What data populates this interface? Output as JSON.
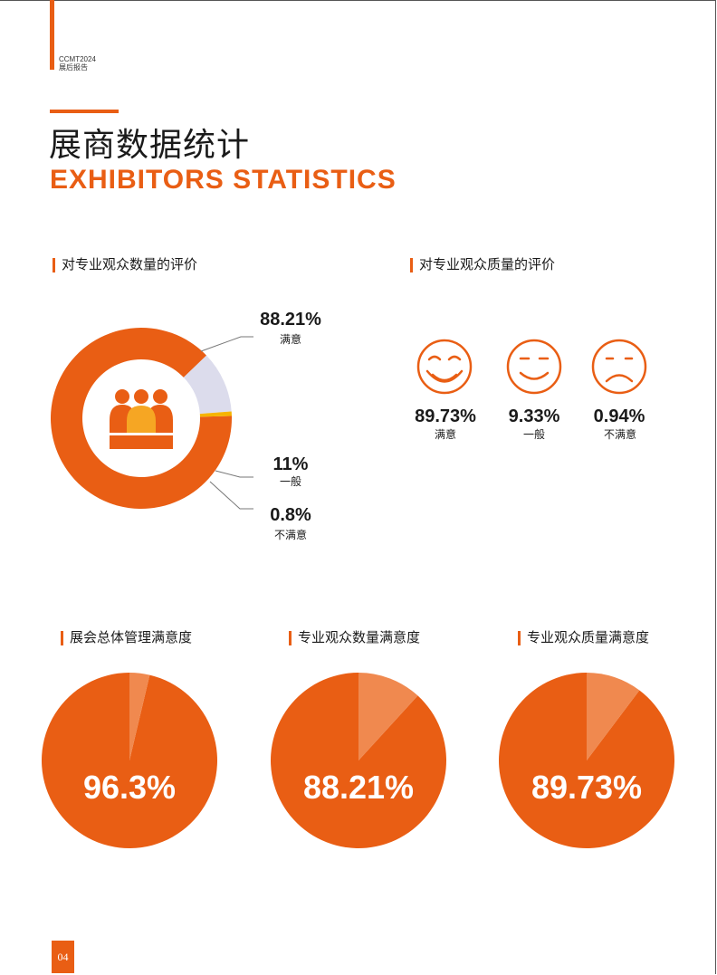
{
  "header": {
    "line1": "CCMT2024",
    "line2": "展后报告"
  },
  "title": {
    "cn": "展商数据统计",
    "en": "EXHIBITORS STATISTICS"
  },
  "colors": {
    "accent": "#e95e14",
    "light": "#f0894f",
    "grey": "#dcdcec",
    "yellow": "#f6b400"
  },
  "page_number": "04",
  "chart_data": [
    {
      "type": "pie",
      "title": "对专业观众数量的评价",
      "style": "donut",
      "slices": [
        {
          "value_label": "88.21%",
          "label": "满意",
          "value": 88.21
        },
        {
          "value_label": "11%",
          "label": "一般",
          "value": 11
        },
        {
          "value_label": "0.8%",
          "label": "不满意",
          "value": 0.8
        }
      ]
    },
    {
      "type": "table",
      "title": "对专业观众质量的评价",
      "items": [
        {
          "icon": "big-smile-icon",
          "value_label": "89.73%",
          "label": "满意",
          "value": 89.73
        },
        {
          "icon": "smile-icon",
          "value_label": "9.33%",
          "label": "一般",
          "value": 9.33
        },
        {
          "icon": "sad-face-icon",
          "value_label": "0.94%",
          "label": "不满意",
          "value": 0.94
        }
      ]
    },
    {
      "type": "pie",
      "title": "展会总体管理满意度",
      "value": 96.3,
      "value_label": "96.3%"
    },
    {
      "type": "pie",
      "title": "专业观众数量满意度",
      "value": 88.21,
      "value_label": "88.21%"
    },
    {
      "type": "pie",
      "title": "专业观众质量满意度",
      "value": 89.73,
      "value_label": "89.73%"
    }
  ]
}
